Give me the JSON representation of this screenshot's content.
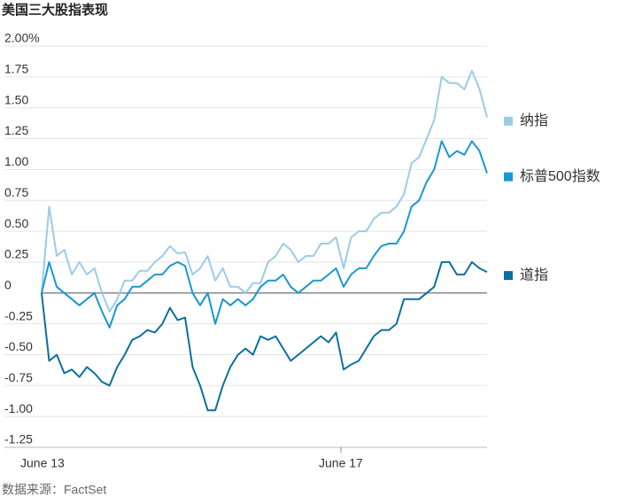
{
  "chart_data": {
    "type": "line",
    "title": "美国三大股指表现",
    "source": "数据来源：FactSet",
    "categories": [
      "June 13",
      null,
      null,
      null,
      null,
      null,
      null,
      null,
      null,
      null,
      null,
      null,
      null,
      null,
      null,
      null,
      null,
      null,
      null,
      null,
      null,
      null,
      null,
      null,
      null,
      null,
      null,
      null,
      null,
      null,
      null,
      null,
      null,
      null,
      null,
      null,
      null,
      null,
      null,
      null,
      "June 17",
      null,
      null,
      null,
      null,
      null,
      null,
      null,
      null,
      null,
      null,
      null,
      null,
      null,
      null,
      null,
      null,
      null,
      null,
      null
    ],
    "series": [
      {
        "name": "纳指",
        "color": "#9ccbe8",
        "values": [
          0,
          0.7,
          0.3,
          0.35,
          0.15,
          0.25,
          0.15,
          0.2,
          0.0,
          -0.15,
          -0.05,
          0.1,
          0.1,
          0.18,
          0.18,
          0.25,
          0.3,
          0.38,
          0.32,
          0.33,
          0.15,
          0.2,
          0.3,
          0.1,
          0.2,
          0.05,
          0.05,
          0.0,
          0.08,
          0.08,
          0.25,
          0.3,
          0.4,
          0.35,
          0.25,
          0.3,
          0.3,
          0.4,
          0.4,
          0.45,
          0.2,
          0.45,
          0.5,
          0.5,
          0.6,
          0.65,
          0.65,
          0.7,
          0.8,
          1.05,
          1.1,
          1.25,
          1.4,
          1.75,
          1.7,
          1.7,
          1.65,
          1.8,
          1.65,
          1.42
        ]
      },
      {
        "name": "标普500指数",
        "color": "#1a97d5",
        "values": [
          0,
          0.25,
          0.05,
          0.0,
          -0.05,
          -0.1,
          -0.05,
          0.0,
          -0.15,
          -0.28,
          -0.1,
          -0.05,
          0.05,
          0.05,
          0.1,
          0.15,
          0.15,
          0.22,
          0.25,
          0.22,
          0.0,
          -0.1,
          0.0,
          -0.25,
          -0.05,
          -0.1,
          -0.05,
          -0.1,
          -0.05,
          0.05,
          0.1,
          0.1,
          0.15,
          0.05,
          0.0,
          0.05,
          0.1,
          0.1,
          0.15,
          0.2,
          0.05,
          0.15,
          0.2,
          0.2,
          0.3,
          0.38,
          0.4,
          0.4,
          0.5,
          0.7,
          0.75,
          0.9,
          1.0,
          1.23,
          1.1,
          1.15,
          1.12,
          1.23,
          1.15,
          0.97
        ]
      },
      {
        "name": "道指",
        "color": "#0b6fa0",
        "values": [
          0,
          -0.55,
          -0.5,
          -0.65,
          -0.62,
          -0.68,
          -0.6,
          -0.65,
          -0.72,
          -0.75,
          -0.6,
          -0.5,
          -0.38,
          -0.35,
          -0.3,
          -0.32,
          -0.25,
          -0.12,
          -0.22,
          -0.2,
          -0.6,
          -0.75,
          -0.95,
          -0.95,
          -0.75,
          -0.6,
          -0.5,
          -0.45,
          -0.5,
          -0.35,
          -0.38,
          -0.35,
          -0.45,
          -0.55,
          -0.5,
          -0.45,
          -0.4,
          -0.35,
          -0.4,
          -0.32,
          -0.62,
          -0.58,
          -0.55,
          -0.45,
          -0.35,
          -0.3,
          -0.3,
          -0.25,
          -0.05,
          -0.05,
          -0.05,
          0.0,
          0.05,
          0.25,
          0.25,
          0.15,
          0.15,
          0.25,
          0.2,
          0.17
        ]
      }
    ],
    "ylim": [
      -1.25,
      2.0
    ],
    "yticks": [
      {
        "value": 2,
        "label": "2.00%"
      },
      1.75,
      {
        "value": 1.5,
        "label": "1.50"
      },
      1.25,
      {
        "value": 1,
        "label": "1.00"
      },
      0.75,
      {
        "value": 0.5,
        "label": "0.50"
      },
      0.25,
      0,
      -0.25,
      {
        "value": -0.5,
        "label": "-0.50"
      },
      -0.75,
      {
        "value": -1,
        "label": "-1.00"
      },
      -1.25
    ],
    "grid": true
  }
}
